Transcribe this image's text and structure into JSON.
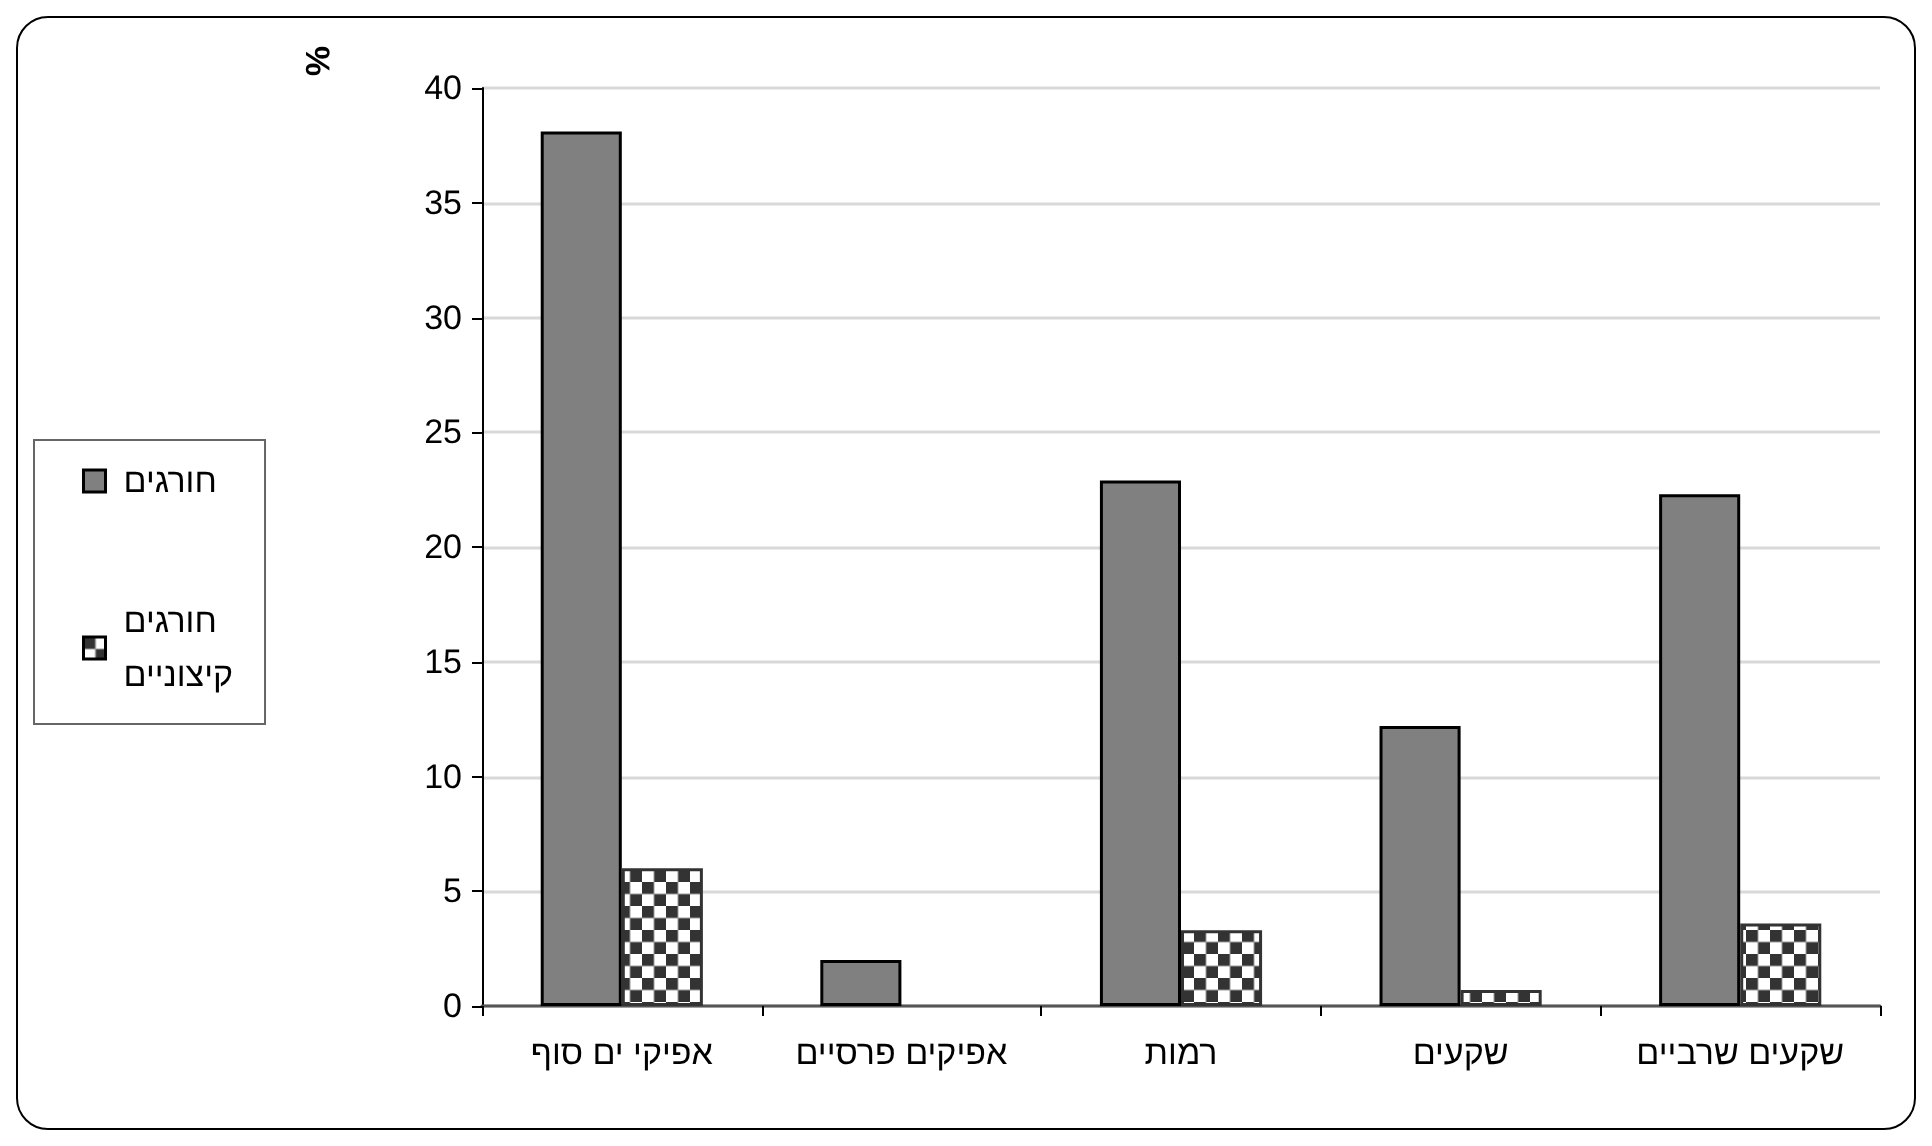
{
  "chart_data": {
    "type": "bar",
    "ylabel": "%",
    "categories": [
      "אפיקי ים סוף",
      "אפיקים פרסיים",
      "רמות",
      "שקעים",
      "שקעים שרביים"
    ],
    "series": [
      {
        "name": "חורגים",
        "color": "#808080",
        "values": [
          38.1,
          2.0,
          22.9,
          12.2,
          22.3
        ]
      },
      {
        "name": "חורגים קיצוניים",
        "color": "#333333",
        "values": [
          6.0,
          null,
          3.3,
          0.7,
          3.6
        ]
      }
    ],
    "ylim": [
      0,
      40
    ],
    "yticks": [
      0,
      5,
      10,
      15,
      20,
      25,
      30,
      35,
      40
    ],
    "grid": "y",
    "legend": "left"
  }
}
